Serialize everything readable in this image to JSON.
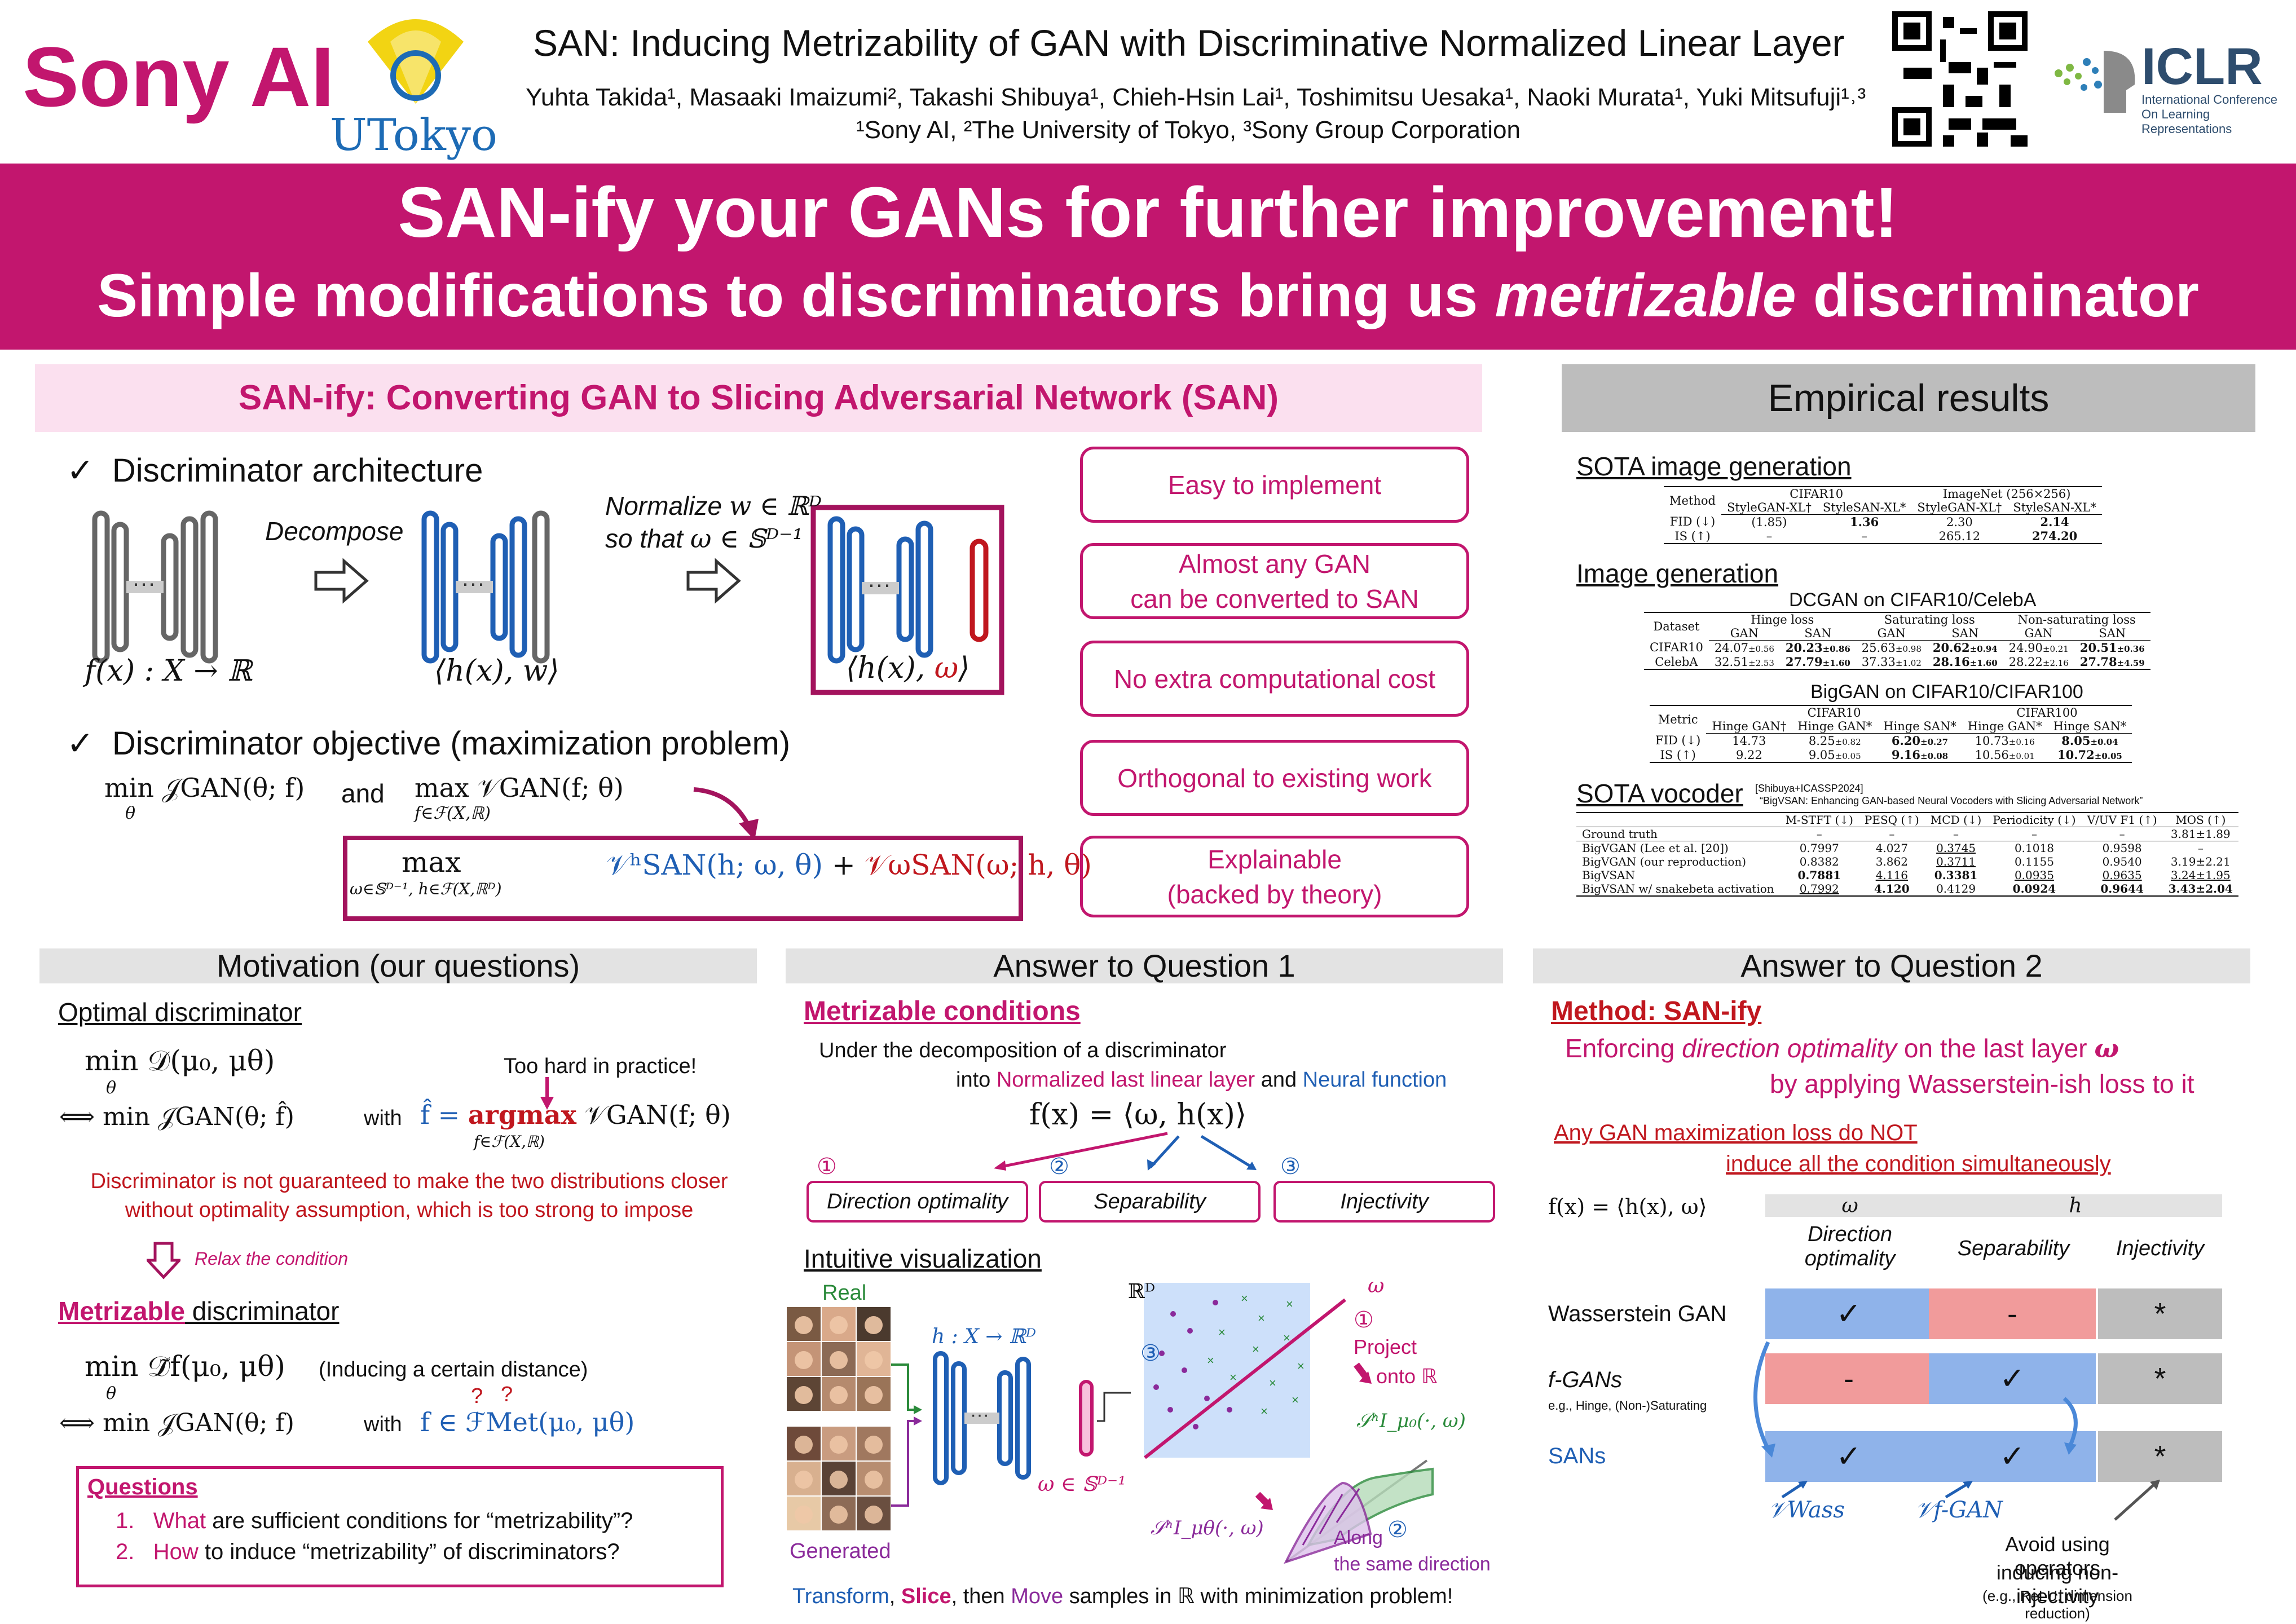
{
  "header": {
    "brand": "Sony AI",
    "utokyo_logo_text": "UTokyo",
    "title": "SAN: Inducing Metrizability of GAN with Discriminative Normalized Linear Layer",
    "authors": "Yuhta Takida¹, Masaaki Imaizumi², Takashi Shibuya¹, Chieh-Hsin Lai¹, Toshimitsu Uesaka¹, Naoki Murata¹, Yuki Mitsufuji¹˒³",
    "affiliations": "¹Sony AI, ²The University of Tokyo, ³Sony Group Corporation",
    "iclr_logo_text": "ICLR",
    "iclr_logo_sub": "International Conference On Learning Representations"
  },
  "banner": {
    "line1": "SAN-ify your GANs for further improvement!",
    "line2_a": "Simple modifications to discriminators bring us ",
    "line2_b": "metrizable",
    "line2_c": " discriminator"
  },
  "san": {
    "heading": "SAN-ify: Converting GAN to Slicing Adversarial Network (SAN)",
    "check_arch": "Discriminator architecture",
    "decompose": "Decompose",
    "normalize_1": "Normalize",
    "normalize_1_math": "w ∈ ℝᴰ",
    "normalize_2": "so that",
    "normalize_2_math": "ω ∈ 𝕊ᴰ⁻¹",
    "f_label": "f(x) : X → ℝ",
    "hw_label": "⟨h(x), w⟩",
    "hw2_label_a": "⟨h(x), ",
    "hw2_label_b": "ω",
    "hw2_label_c": "⟩",
    "check_obj": "Discriminator objective (maximization problem)",
    "obj_min": "min 𝒥GAN(θ; f)",
    "obj_min_sub": "θ",
    "obj_and": "and",
    "obj_max": "max 𝒱GAN(f; θ)",
    "obj_max_sub": "f∈ℱ(X,ℝ)",
    "san_max": "max",
    "san_max_sub": "ω∈𝕊ᴰ⁻¹, h∈ℱ(X,ℝᴰ)",
    "san_term1": "𝒱ʰSAN(h; ω, θ)",
    "san_plus": "+",
    "san_term2": "𝒱ωSAN(ω; h, θ)"
  },
  "features": [
    "Easy to implement",
    "Almost any GAN\ncan be converted to SAN",
    "No extra computational cost",
    "Orthogonal to existing work",
    "Explainable\n(backed by theory)"
  ],
  "empirical": {
    "heading": "Empirical results",
    "sota_image": "SOTA image generation",
    "t1": {
      "h_method": "Method",
      "h_cifar": "CIFAR10",
      "h_imagenet": "ImageNet (256×256)",
      "cols": [
        "StyleGAN-XL†",
        "StyleSAN-XL*",
        "StyleGAN-XL†",
        "StyleSAN-XL*"
      ],
      "rows": [
        {
          "name": "FID (↓)",
          "vals": [
            "(1.85)",
            "1.36",
            "2.30",
            "2.14"
          ]
        },
        {
          "name": "IS (↑)",
          "vals": [
            "–",
            "–",
            "265.12",
            "274.20"
          ]
        }
      ]
    },
    "image_gen": "Image generation",
    "dcgan_title": "DCGAN on CIFAR10/CelebA",
    "t2": {
      "h_dataset": "Dataset",
      "groups": [
        "Hinge loss",
        "Saturating loss",
        "Non-saturating loss"
      ],
      "sub": [
        "GAN",
        "SAN",
        "GAN",
        "SAN",
        "GAN",
        "SAN"
      ],
      "rows": [
        {
          "name": "CIFAR10",
          "vals": [
            "24.07",
            "20.23",
            "25.63",
            "20.62",
            "24.90",
            "20.51"
          ],
          "sd": [
            "±0.56",
            "±0.86",
            "±0.98",
            "±0.94",
            "±0.21",
            "±0.36"
          ]
        },
        {
          "name": "CelebA",
          "vals": [
            "32.51",
            "27.79",
            "37.33",
            "28.16",
            "28.22",
            "27.78"
          ],
          "sd": [
            "±2.53",
            "±1.60",
            "±1.02",
            "±1.60",
            "±2.16",
            "±4.59"
          ]
        }
      ]
    },
    "biggan_title": "BigGAN on CIFAR10/CIFAR100",
    "t3": {
      "h_metric": "Metric",
      "groups": [
        "CIFAR10",
        "CIFAR100"
      ],
      "sub": [
        "Hinge GAN†",
        "Hinge GAN*",
        "Hinge SAN*",
        "Hinge GAN*",
        "Hinge SAN*"
      ],
      "rows": [
        {
          "name": "FID (↓)",
          "vals": [
            "14.73",
            "8.25",
            "6.20",
            "10.73",
            "8.05"
          ],
          "sd": [
            "",
            "±0.82",
            "±0.27",
            "±0.16",
            "±0.04"
          ]
        },
        {
          "name": "IS (↑)",
          "vals": [
            "9.22",
            "9.05",
            "9.16",
            "10.56",
            "10.72"
          ],
          "sd": [
            "",
            "±0.05",
            "±0.08",
            "±0.01",
            "±0.05"
          ]
        }
      ]
    },
    "sota_vocoder": "SOTA vocoder",
    "vocoder_ref1": "[Shibuya+ICASSP2024]",
    "vocoder_ref2": "“BigVSAN: Enhancing GAN-based Neural Vocoders with Slicing Adversarial Network”",
    "t4": {
      "cols": [
        "M-STFT (↓)",
        "PESQ (↑)",
        "MCD (↓)",
        "Periodicity (↓)",
        "V/UV F1 (↑)",
        "MOS (↑)"
      ],
      "rows": [
        {
          "name": "Ground truth",
          "vals": [
            "–",
            "–",
            "–",
            "–",
            "–",
            "3.81±1.89"
          ]
        },
        {
          "name": "BigVGAN (Lee et al. [20])",
          "vals": [
            "0.7997",
            "4.027",
            "0.3745",
            "0.1018",
            "0.9598",
            "–"
          ]
        },
        {
          "name": "BigVGAN (our reproduction)",
          "vals": [
            "0.8382",
            "3.862",
            "0.3711",
            "0.1155",
            "0.9540",
            "3.19±2.21"
          ]
        },
        {
          "name": "BigVSAN",
          "vals": [
            "0.7881",
            "4.116",
            "0.3381",
            "0.0935",
            "0.9635",
            "3.24±1.95"
          ]
        },
        {
          "name": "BigVSAN w/ snakebeta activation",
          "vals": [
            "0.7992",
            "4.120",
            "0.4129",
            "0.0924",
            "0.9644",
            "3.43±2.04"
          ]
        }
      ]
    }
  },
  "motivation": {
    "heading": "Motivation (our questions)",
    "optimal": "Optimal discriminator",
    "opt_eq": "min 𝒟(μ₀, μθ)",
    "opt_eq_sub": "θ",
    "too_hard": "Too hard in practice!",
    "opt_eq2": "⟺  min 𝒥GAN(θ; f̂)",
    "opt_with": "with",
    "opt_fhat": "f̂ = ",
    "opt_argmax": "argmax",
    "opt_argmax_sub": "f∈ℱ(X,ℝ)",
    "opt_vgan": "𝒱GAN(f; θ)",
    "warn1": "Discriminator is not guaranteed to make the two distributions closer",
    "warn2": "without optimality assumption, which is too strong to impose",
    "relax": "Relax the condition",
    "metrizable": "Metrizable",
    "metrizable_rest": " discriminator",
    "met_eq": "min 𝒟̃f(μ₀, μθ)",
    "met_inducing": "(Inducing a certain distance)",
    "met_eq2": "⟺  min 𝒥GAN(θ; f)",
    "met_with": "with",
    "met_fin": "f ∈ ℱMet(μ₀, μθ)",
    "q": "?",
    "questions": "Questions",
    "q1_a": "What",
    "q1_b": " are sufficient conditions for “metrizability”?",
    "q2_a": "How",
    "q2_b": " to induce “metrizability” of discriminators?",
    "num1": "1.",
    "num2": "2."
  },
  "answer1": {
    "heading": "Answer to Question 1",
    "metrizable_conditions": "Metrizable conditions",
    "under": "Under the decomposition of a discriminator",
    "into_a": "into ",
    "into_b": "Normalized last linear layer",
    "into_c": " and ",
    "into_d": "Neural function",
    "decomp_eq": "f(x) = ⟨ω, h(x)⟩",
    "c1_num": "①",
    "c2_num": "②",
    "c3_num": "③",
    "c1": "Direction optimality",
    "c2": "Separability",
    "c3": "Injectivity",
    "intuitive": "Intuitive visualization",
    "real": "Real",
    "generated": "Generated",
    "h_map": "h : X → ℝᴰ",
    "omega_in": "ω ∈ 𝕊ᴰ⁻¹",
    "rd": "ℝᴰ",
    "omega": "ω",
    "project_1": "Project",
    "project_2": "onto ℝ",
    "shi0": "𝒮ʰI_μ₀(·, ω)",
    "shith": "𝒮ʰI_μθ(·, ω)",
    "along_1": "Along",
    "along_2": "the same direction",
    "caption_a": "Transform",
    "caption_b": ", ",
    "caption_c": "Slice",
    "caption_d": ", then ",
    "caption_e": "Move",
    "caption_f": " samples in ℝ with minimization problem!"
  },
  "answer2": {
    "heading": "Answer to Question 2",
    "method": "Method: SAN-ify",
    "enf_a": "Enforcing ",
    "enf_b": "direction optimality",
    "enf_c": " on the last layer ",
    "enf_d": "ω",
    "enf2": "by applying Wasserstein-ish loss to it",
    "any1": "Any GAN maximization loss do NOT",
    "any2": "induce all the condition simultaneously",
    "feq": "f(x) = ⟨h(x), ω⟩",
    "col_w": "ω",
    "col_h": "h",
    "col1a": "Direction",
    "col1b": "optimality",
    "col2": "Separability",
    "col3": "Injectivity",
    "rows": [
      {
        "name": "Wasserstein GAN",
        "cells": [
          "✓",
          "-",
          "*"
        ]
      },
      {
        "name": "f-GANs",
        "cells": [
          "-",
          "✓",
          "*"
        ]
      },
      {
        "name": "SANs",
        "cells": [
          "✓",
          "✓",
          "*"
        ]
      }
    ],
    "fgan_sub": "e.g., Hinge, (Non-)Saturating",
    "vwass": "𝒱Wass",
    "vfgan": "𝒱f-GAN",
    "avoid1": "Avoid using operators",
    "avoid2": "inducing non-injectivity",
    "avoid3": "(e.g., ReLU, dimension reduction)"
  },
  "colors": {
    "accent": "#c2166e",
    "blue": "#1f5fb4",
    "red": "#c0171e",
    "cell_blue": "#8fb3ea",
    "cell_red": "#f19b9b",
    "cell_gray": "#bdbdbd"
  }
}
